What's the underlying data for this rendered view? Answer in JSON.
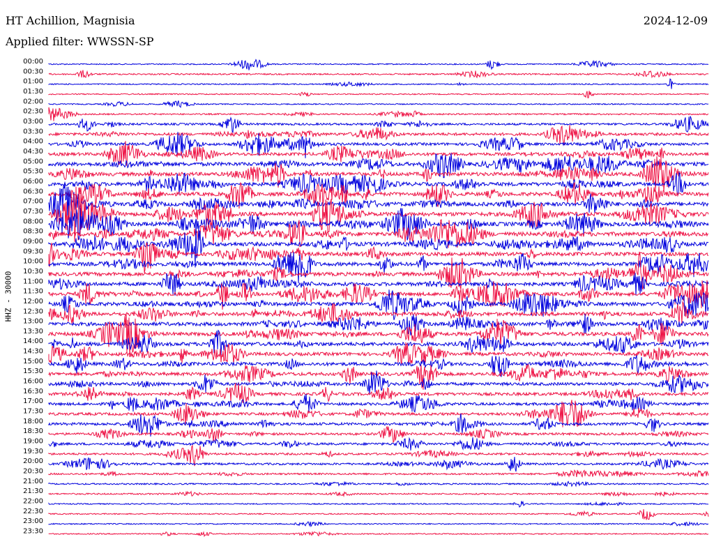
{
  "header": {
    "station": "HT Achillion, Magnisia",
    "date": "2024-12-09",
    "filter": "Applied filter: WWSSN-SP"
  },
  "chart_data": {
    "type": "line",
    "title": "HT Achillion, Magnisia",
    "ylabel": "HHZ - 30000",
    "ylim": [
      "00:00",
      "23:30"
    ],
    "grid": false,
    "trace_colors": [
      "#0000dd",
      "#ee1144"
    ],
    "categories": [
      "00:00",
      "00:30",
      "01:00",
      "01:30",
      "02:00",
      "02:30",
      "03:00",
      "03:30",
      "04:00",
      "04:30",
      "05:00",
      "05:30",
      "06:00",
      "06:30",
      "07:00",
      "07:30",
      "08:00",
      "08:30",
      "09:00",
      "09:30",
      "10:00",
      "10:30",
      "11:00",
      "11:30",
      "12:00",
      "12:30",
      "13:00",
      "13:30",
      "14:00",
      "14:30",
      "15:00",
      "15:30",
      "16:00",
      "16:30",
      "17:00",
      "17:30",
      "18:00",
      "18:30",
      "19:00",
      "19:30",
      "20:00",
      "20:30",
      "21:00",
      "21:30",
      "22:00",
      "22:30",
      "23:00",
      "23:30"
    ],
    "values": [
      0.1,
      0.2,
      0.1,
      0.1,
      0.1,
      0.2,
      0.4,
      0.6,
      0.6,
      0.7,
      0.9,
      0.9,
      0.9,
      0.9,
      1.0,
      1.0,
      1.0,
      1.0,
      1.0,
      0.9,
      0.9,
      0.9,
      0.9,
      0.9,
      0.9,
      0.9,
      0.9,
      0.9,
      0.9,
      0.8,
      0.8,
      0.8,
      0.7,
      0.7,
      0.6,
      0.6,
      0.6,
      0.5,
      0.5,
      0.4,
      0.4,
      0.3,
      0.2,
      0.2,
      0.1,
      0.1,
      0.1,
      0.1
    ]
  }
}
